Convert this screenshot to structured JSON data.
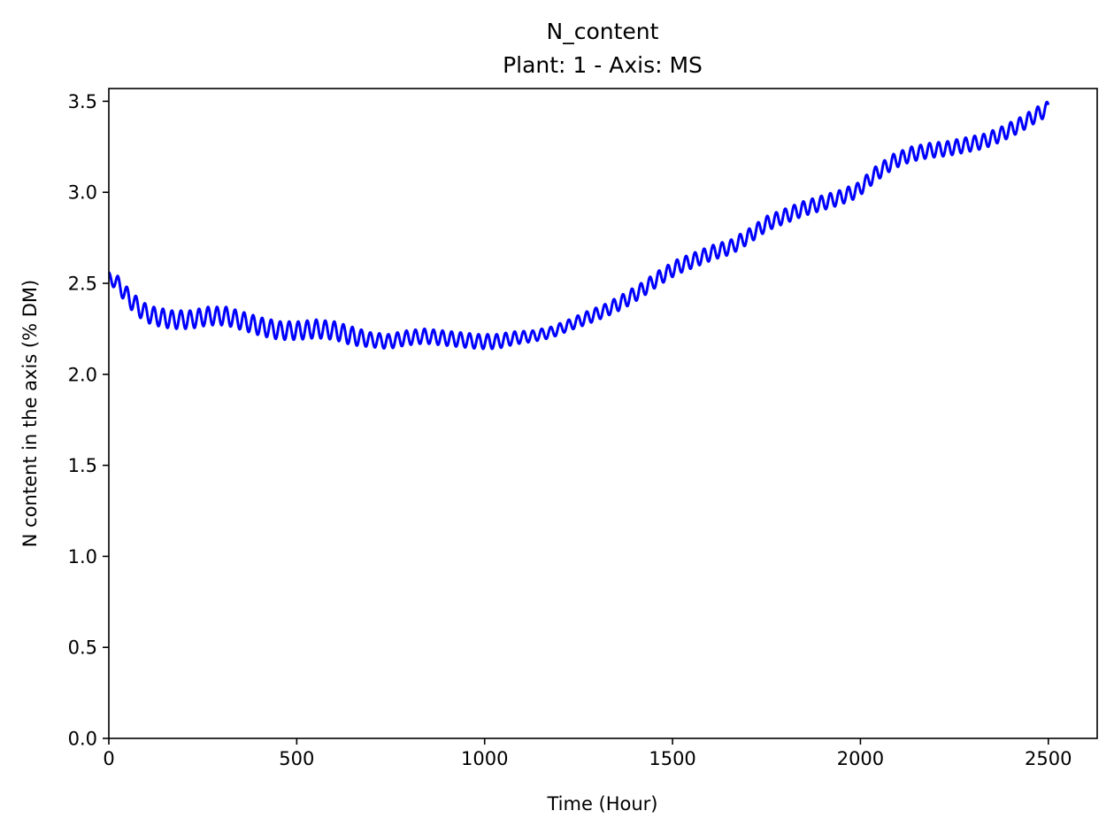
{
  "chart_data": {
    "type": "line",
    "title": "N_content",
    "subtitle": "Plant: 1 - Axis: MS",
    "xlabel": "Time (Hour)",
    "ylabel": "N content in the axis (% DM)",
    "xlim": [
      0,
      2630
    ],
    "ylim": [
      0,
      3.57
    ],
    "xticks": [
      0,
      500,
      1000,
      1500,
      2000,
      2500
    ],
    "xtick_labels": [
      "0",
      "500",
      "1000",
      "1500",
      "2000",
      "2500"
    ],
    "yticks": [
      0.0,
      0.5,
      1.0,
      1.5,
      2.0,
      2.5,
      3.0,
      3.5
    ],
    "ytick_labels": [
      "0.0",
      "0.5",
      "1.0",
      "1.5",
      "2.0",
      "2.5",
      "3.0",
      "3.5"
    ],
    "grid": false,
    "legend": "none",
    "series": [
      {
        "color": "#0000ff",
        "oscillation_period_hours": 24,
        "x": [
          0,
          24,
          48,
          72,
          96,
          120,
          168,
          216,
          264,
          312,
          360,
          408,
          456,
          504,
          552,
          600,
          648,
          696,
          744,
          792,
          840,
          888,
          936,
          984,
          1032,
          1080,
          1128,
          1176,
          1224,
          1272,
          1320,
          1368,
          1416,
          1464,
          1512,
          1560,
          1608,
          1656,
          1704,
          1752,
          1800,
          1848,
          1896,
          1944,
          1992,
          2040,
          2088,
          2136,
          2184,
          2232,
          2280,
          2328,
          2376,
          2424,
          2472,
          2500
        ],
        "y_mean": [
          2.53,
          2.5,
          2.43,
          2.38,
          2.34,
          2.32,
          2.3,
          2.3,
          2.32,
          2.32,
          2.29,
          2.26,
          2.24,
          2.24,
          2.25,
          2.24,
          2.21,
          2.19,
          2.18,
          2.2,
          2.21,
          2.2,
          2.19,
          2.18,
          2.18,
          2.2,
          2.21,
          2.23,
          2.27,
          2.31,
          2.35,
          2.4,
          2.46,
          2.53,
          2.59,
          2.63,
          2.67,
          2.7,
          2.76,
          2.83,
          2.87,
          2.91,
          2.94,
          2.97,
          3.01,
          3.1,
          3.17,
          3.21,
          3.23,
          3.24,
          3.26,
          3.28,
          3.32,
          3.37,
          3.43,
          3.46
        ],
        "y_amplitude": [
          0.03,
          0.04,
          0.05,
          0.05,
          0.05,
          0.05,
          0.05,
          0.05,
          0.05,
          0.05,
          0.05,
          0.05,
          0.05,
          0.05,
          0.05,
          0.05,
          0.05,
          0.04,
          0.04,
          0.04,
          0.04,
          0.04,
          0.04,
          0.04,
          0.04,
          0.035,
          0.03,
          0.03,
          0.03,
          0.035,
          0.035,
          0.04,
          0.04,
          0.04,
          0.04,
          0.04,
          0.04,
          0.04,
          0.04,
          0.04,
          0.04,
          0.04,
          0.04,
          0.04,
          0.04,
          0.04,
          0.04,
          0.04,
          0.04,
          0.04,
          0.04,
          0.04,
          0.04,
          0.04,
          0.04,
          0.04
        ]
      }
    ]
  }
}
